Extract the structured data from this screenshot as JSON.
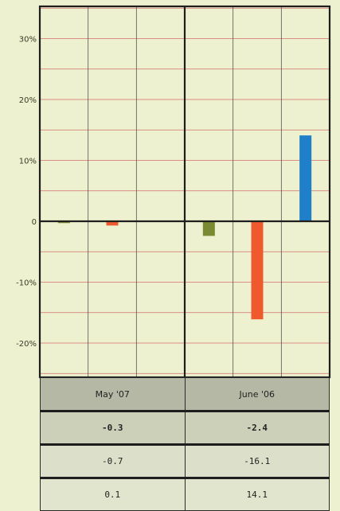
{
  "chart_data": {
    "type": "bar",
    "categories": [
      "May '07",
      "June '06"
    ],
    "series": [
      {
        "values": [
          -0.3,
          -2.4
        ],
        "color": "#7a8a32"
      },
      {
        "values": [
          -0.7,
          -16.1
        ],
        "color": "#ee5a2e"
      },
      {
        "values": [
          0.1,
          14.1
        ],
        "color": "#1f7fc8"
      }
    ],
    "y_ticks": [
      {
        "value": 30,
        "label": "30%"
      },
      {
        "value": 20,
        "label": "20%"
      },
      {
        "value": 10,
        "label": "10%"
      },
      {
        "value": 0,
        "label": "0"
      },
      {
        "value": -10,
        "label": "-10%"
      },
      {
        "value": -20,
        "label": "-20%"
      }
    ],
    "ylim": [
      -25,
      35
    ],
    "grid": true
  },
  "table": {
    "headers": [
      "May '07",
      "June '06"
    ],
    "rows": [
      [
        "-0.3",
        "-2.4"
      ],
      [
        "-0.7",
        "-16.1"
      ],
      [
        "0.1",
        "14.1"
      ]
    ]
  }
}
